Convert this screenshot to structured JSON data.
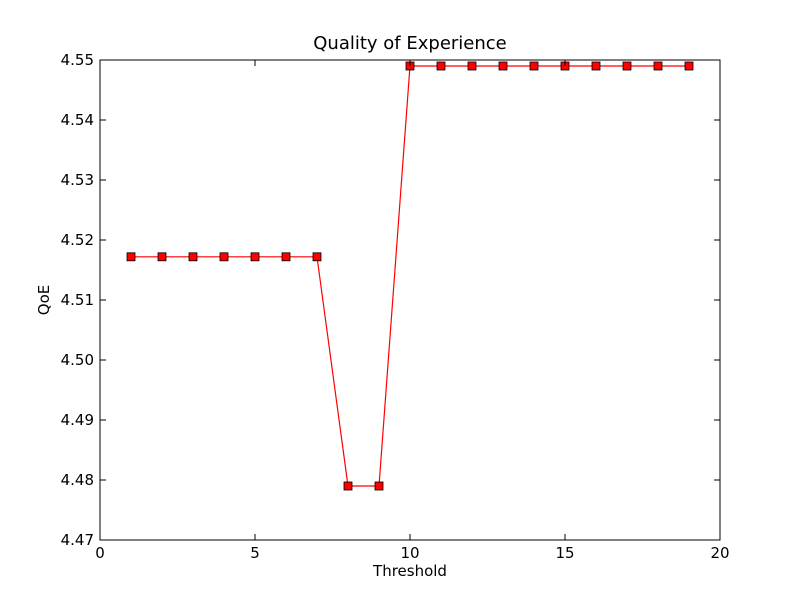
{
  "chart_data": {
    "type": "line",
    "title": "Quality of Experience",
    "xlabel": "Threshold",
    "ylabel": "QoE",
    "xlim": [
      0,
      20
    ],
    "ylim": [
      4.47,
      4.55
    ],
    "xticks": [
      "0",
      "5",
      "10",
      "15",
      "20"
    ],
    "yticks": [
      "4.47",
      "4.48",
      "4.49",
      "4.50",
      "4.51",
      "4.52",
      "4.53",
      "4.54",
      "4.55"
    ],
    "grid": false,
    "legend": "none",
    "series": [
      {
        "color": "#ff0000",
        "marker": "square",
        "x": [
          1,
          2,
          3,
          4,
          5,
          6,
          7,
          8,
          9,
          10,
          11,
          12,
          13,
          14,
          15,
          16,
          17,
          18,
          19
        ],
        "y": [
          4.5172,
          4.5172,
          4.5172,
          4.5172,
          4.5172,
          4.5172,
          4.5172,
          4.479,
          4.479,
          4.549,
          4.549,
          4.549,
          4.549,
          4.549,
          4.549,
          4.549,
          4.549,
          4.549,
          4.549
        ]
      }
    ]
  }
}
